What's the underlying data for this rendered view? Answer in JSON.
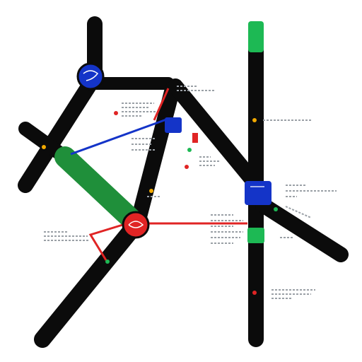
{
  "colors": {
    "track": "#0b0b0b",
    "green": "#1db954",
    "dark_green": "#1f8f3a",
    "blue": "#1434c8",
    "red": "#e02424",
    "label_gray": "#9aa0a6",
    "accent_yellow": "#f2a900"
  },
  "icons": {
    "blue_circle_node": "blue-circle-node-icon",
    "red_circle_node": "red-circle-node-icon",
    "blue_square_node": "blue-square-node-icon",
    "green_block_node": "green-block-node-icon"
  },
  "diagram": {
    "label_count": 12
  }
}
